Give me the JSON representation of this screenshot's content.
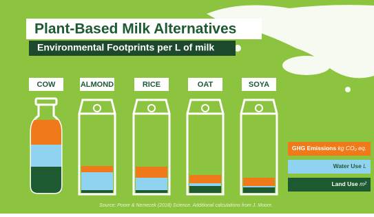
{
  "chart_data": {
    "type": "container",
    "title": "Plant-Based Milk Alternatives",
    "subtitle": "Environmental Footprints per L of milk",
    "categories": [
      "COW",
      "ALMOND",
      "RICE",
      "OAT",
      "SOYA"
    ],
    "series": [
      {
        "name": "GHG Emissions",
        "unit": "kg CO₂ eq.",
        "color": "#f07a1a",
        "values": [
          36,
          9,
          16,
          12,
          12
        ]
      },
      {
        "name": "Water Use",
        "unit": "L",
        "color": "#8fd3f0",
        "values": [
          32,
          26,
          18,
          4,
          2
        ]
      },
      {
        "name": "Land Use",
        "unit": "m²",
        "color": "#1d5a32",
        "values": [
          38,
          4,
          4,
          10,
          8
        ]
      }
    ],
    "source": "Source: Poore & Nemecek (2018) Science. Additional calculations from J. Moore."
  }
}
